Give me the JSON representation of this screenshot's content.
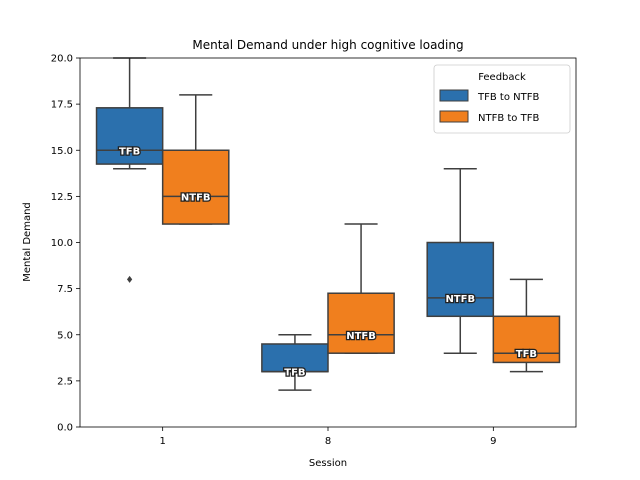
{
  "chart_data": {
    "type": "box",
    "title": "Mental Demand under high cognitive loading",
    "xlabel": "Session",
    "ylabel": "Mental Demand",
    "categories": [
      "1",
      "8",
      "9"
    ],
    "ylim": [
      0,
      20
    ],
    "yticks": [
      "0.0",
      "2.5",
      "5.0",
      "7.5",
      "10.0",
      "12.5",
      "15.0",
      "17.5",
      "20.0"
    ],
    "legend": {
      "title": "Feedback",
      "position": "top-right",
      "entries": [
        "TFB to NTFB",
        "NTFB to TFB"
      ]
    },
    "series": [
      {
        "name": "TFB to NTFB",
        "color": "#2b70ad",
        "boxes": [
          {
            "label": "TFB",
            "whisker_low": 14,
            "q1": 14.25,
            "median": 15,
            "q3": 17.3,
            "whisker_high": 20,
            "outliers": [
              8
            ]
          },
          {
            "label": "TFB",
            "whisker_low": 2,
            "q1": 3,
            "median": 3,
            "q3": 4.5,
            "whisker_high": 5,
            "outliers": []
          },
          {
            "label": "NTFB",
            "whisker_low": 4,
            "q1": 6,
            "median": 7,
            "q3": 10,
            "whisker_high": 14,
            "outliers": []
          }
        ]
      },
      {
        "name": "NTFB to TFB",
        "color": "#f07f1e",
        "boxes": [
          {
            "label": "NTFB",
            "whisker_low": 11,
            "q1": 11,
            "median": 12.5,
            "q3": 15,
            "whisker_high": 18,
            "outliers": []
          },
          {
            "label": "NTFB",
            "whisker_low": 4,
            "q1": 4,
            "median": 5,
            "q3": 7.25,
            "whisker_high": 11,
            "outliers": []
          },
          {
            "label": "TFB",
            "whisker_low": 3,
            "q1": 3.5,
            "median": 4,
            "q3": 6,
            "whisker_high": 8,
            "outliers": []
          }
        ]
      }
    ]
  }
}
